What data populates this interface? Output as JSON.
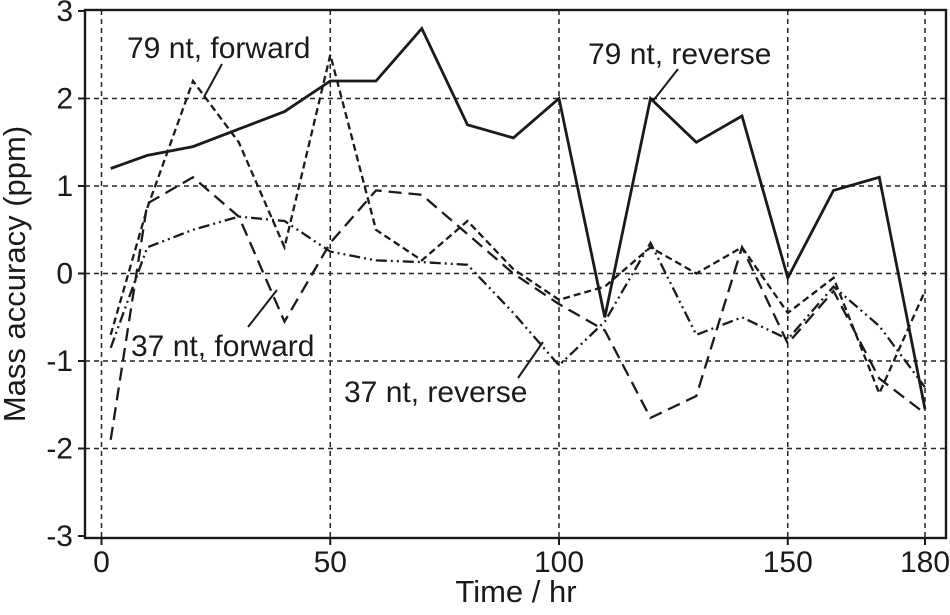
{
  "chart_data": {
    "type": "line",
    "title": "",
    "xlabel": "Time / hr",
    "ylabel": "Mass accuracy (ppm)",
    "xlim": [
      -4,
      185
    ],
    "ylim": [
      -3,
      3
    ],
    "x_ticks": [
      0,
      50,
      100,
      150,
      180
    ],
    "y_ticks": [
      3,
      2,
      1,
      0,
      -1,
      -2,
      -3
    ],
    "grid": "dashed black gridlines at every labeled x tick and every integer y value",
    "legend_position": "none (direct line annotations with leader lines)",
    "x": [
      2,
      10,
      20,
      30,
      40,
      50,
      60,
      70,
      80,
      90,
      100,
      110,
      120,
      130,
      140,
      150,
      160,
      170,
      180
    ],
    "series": [
      {
        "name": "79 nt, reverse",
        "style": "solid",
        "values": [
          1.2,
          1.35,
          1.45,
          1.65,
          1.85,
          2.2,
          2.2,
          2.8,
          1.7,
          1.55,
          2.0,
          -0.5,
          2.0,
          1.5,
          1.8,
          -0.05,
          0.95,
          1.1,
          -1.55
        ]
      },
      {
        "name": "79 nt, forward",
        "style": "short-dash",
        "values": [
          -0.7,
          0.75,
          2.2,
          1.5,
          0.3,
          2.5,
          0.5,
          0.15,
          0.6,
          0.05,
          -0.3,
          -0.15,
          0.3,
          0.0,
          0.3,
          -0.45,
          -0.05,
          -1.37,
          -0.2
        ]
      },
      {
        "name": "37 nt, forward",
        "style": "long-dash",
        "values": [
          -1.9,
          0.8,
          1.1,
          0.65,
          -0.55,
          0.35,
          0.95,
          0.9,
          0.45,
          0.0,
          -0.35,
          -0.65,
          -1.65,
          -1.4,
          0.3,
          -0.8,
          -0.2,
          -1.2,
          -1.6
        ]
      },
      {
        "name": "37 nt, reverse",
        "style": "dash-dot-dot",
        "values": [
          -0.85,
          0.3,
          0.5,
          0.65,
          0.6,
          0.25,
          0.15,
          0.13,
          0.1,
          -0.45,
          -1.05,
          -0.55,
          0.35,
          -0.7,
          -0.5,
          -0.75,
          -0.15,
          -0.6,
          -1.3
        ]
      }
    ],
    "annotations": [
      {
        "label": "79 nt, forward",
        "points_to_series": "79 nt, forward"
      },
      {
        "label": "79 nt, reverse",
        "points_to_series": "79 nt, reverse"
      },
      {
        "label": "37 nt, forward",
        "points_to_series": "37 nt, forward"
      },
      {
        "label": "37 nt, reverse",
        "points_to_series": "37 nt, reverse"
      }
    ],
    "line_color": "#1a1a1a"
  }
}
